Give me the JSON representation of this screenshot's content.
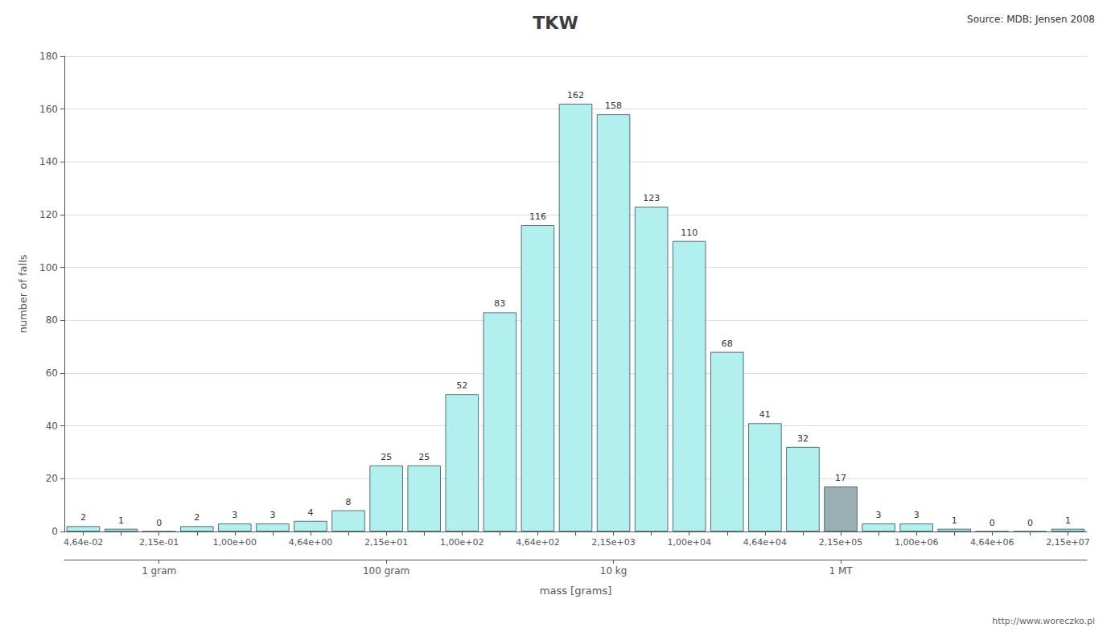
{
  "chart_data": {
    "type": "bar",
    "title": "TKW",
    "xlabel": "mass [grams]",
    "ylabel": "number of falls",
    "annotations": [
      "Source: MDB; Jensen 2008",
      "http://www.woreczko.pl"
    ],
    "categories": [
      "4,64e-02",
      null,
      "2,15e-01",
      null,
      "1,00e+00",
      null,
      "4,64e+00",
      null,
      "2,15e+01",
      null,
      "1,00e+02",
      null,
      "4,64e+02",
      null,
      "2,15e+03",
      null,
      "1,00e+04",
      null,
      "4,64e+04",
      null,
      "2,15e+05",
      null,
      "1,00e+06",
      null,
      "4,64e+06",
      null,
      "2,15e+07"
    ],
    "secondary_categories": [
      null,
      null,
      "1 gram",
      null,
      null,
      null,
      null,
      null,
      "100 gram",
      null,
      null,
      null,
      null,
      null,
      "10 kg",
      null,
      null,
      null,
      null,
      null,
      "1 MT",
      null,
      null,
      null,
      null,
      null,
      null
    ],
    "values": [
      2,
      1,
      0,
      2,
      3,
      3,
      4,
      8,
      25,
      25,
      52,
      83,
      116,
      162,
      158,
      123,
      110,
      68,
      41,
      32,
      17,
      3,
      3,
      1,
      0,
      0,
      1
    ],
    "colors": [
      "#b2f0f0",
      "#b2f0f0",
      "#b2f0f0",
      "#b2f0f0",
      "#b2f0f0",
      "#b2f0f0",
      "#b2f0f0",
      "#b2f0f0",
      "#b2f0f0",
      "#b2f0f0",
      "#b2f0f0",
      "#b2f0f0",
      "#b2f0f0",
      "#b2f0f0",
      "#b2f0f0",
      "#b2f0f0",
      "#b2f0f0",
      "#b2f0f0",
      "#b2f0f0",
      "#b2f0f0",
      "#9ab0b2",
      "#b2f0f0",
      "#b2f0f0",
      "#b2f0f0",
      "#b2f0f0",
      "#b2f0f0",
      "#b2f0f0"
    ],
    "ylim": [
      0,
      180
    ],
    "yticks": [
      0,
      20,
      40,
      60,
      80,
      100,
      120,
      140,
      160,
      180
    ],
    "grid": true,
    "data_labels": true
  }
}
